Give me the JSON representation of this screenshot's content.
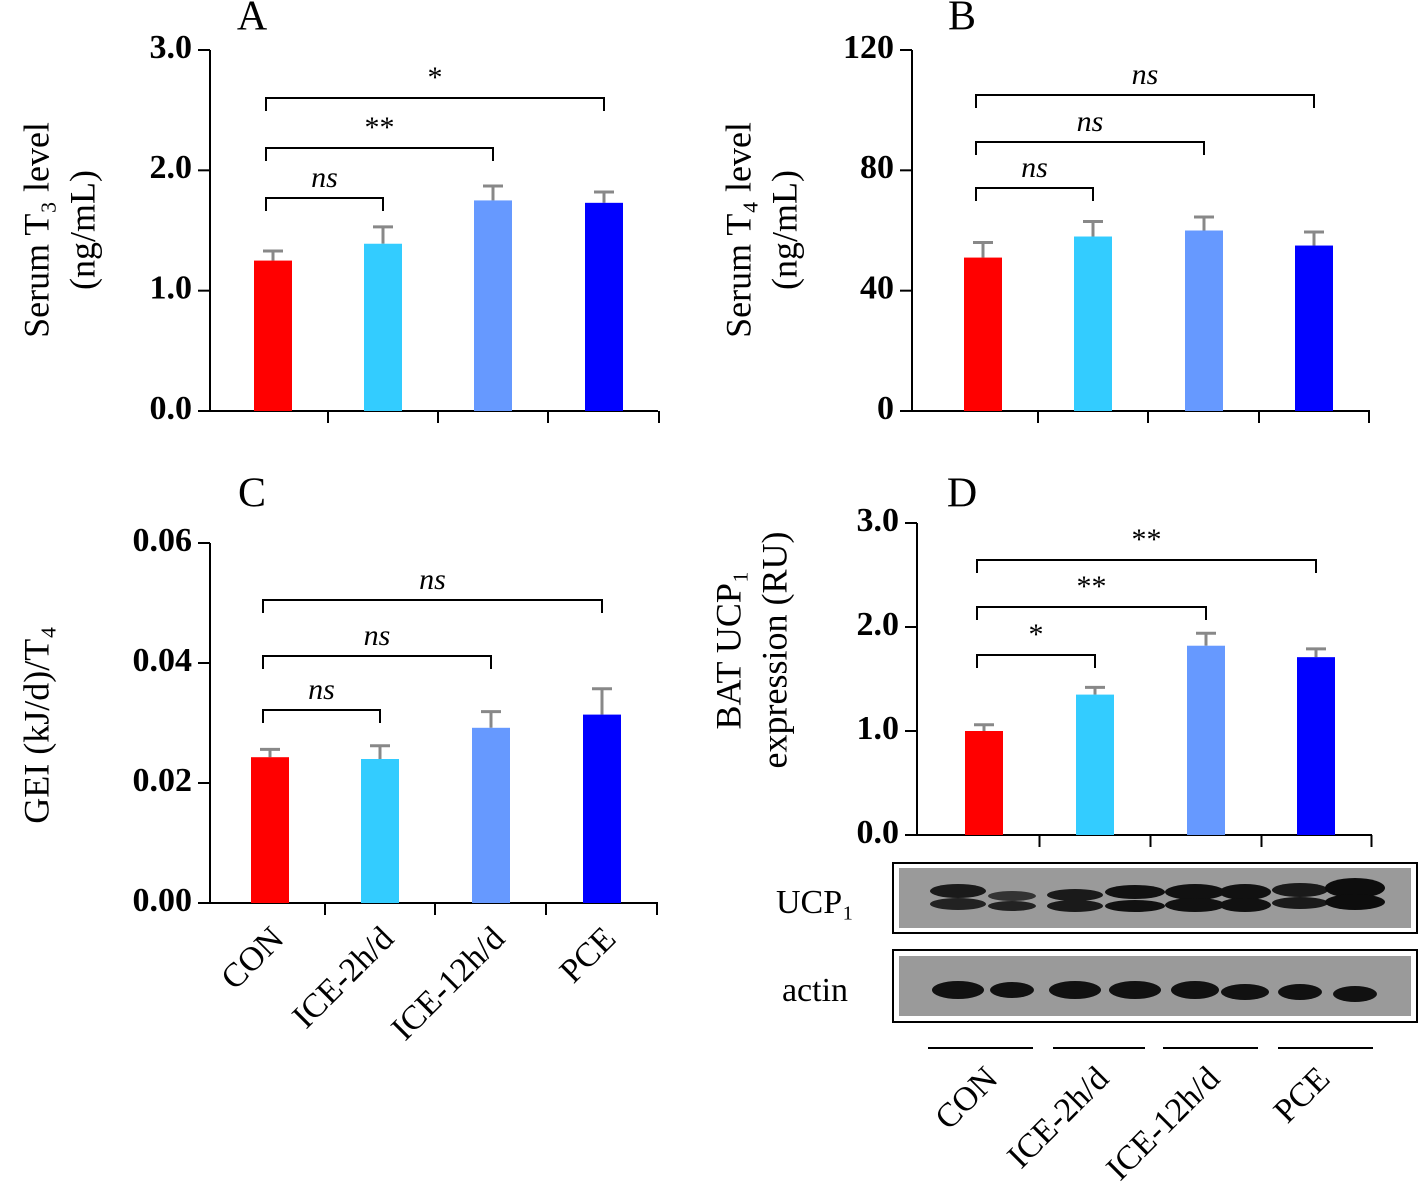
{
  "chart_data": [
    {
      "type": "bar",
      "panel": "A",
      "ylabel": [
        "Serum T₃ level",
        "(ng/mL)"
      ],
      "categories": [
        null,
        null,
        null,
        null
      ],
      "values": [
        1.25,
        1.39,
        1.75,
        1.73
      ],
      "errors": [
        0.08,
        0.14,
        0.12,
        0.09
      ],
      "colors": [
        "#ff0000",
        "#33ccff",
        "#6699ff",
        "#0000ff"
      ],
      "ylim": [
        0,
        3
      ],
      "yticks": [
        {
          "value": 0,
          "label": "0.0"
        },
        {
          "value": 1,
          "label": "1.0"
        },
        {
          "value": 2,
          "label": "2.0"
        },
        {
          "value": 3,
          "label": "3.0"
        }
      ],
      "significance": [
        "ns",
        "**",
        "*"
      ]
    },
    {
      "type": "bar",
      "panel": "B",
      "ylabel": [
        "Serum T₄ level",
        "(ng/mL)"
      ],
      "categories": [
        null,
        null,
        null,
        null
      ],
      "values": [
        51,
        58,
        60,
        55
      ],
      "errors": [
        5,
        5,
        4.5,
        4.5
      ],
      "colors": [
        "#ff0000",
        "#33ccff",
        "#6699ff",
        "#0000ff"
      ],
      "ylim": [
        0,
        120
      ],
      "yticks": [
        0,
        40,
        80,
        120
      ],
      "significance": [
        "ns",
        "ns",
        "ns"
      ]
    },
    {
      "type": "bar",
      "panel": "C",
      "ylabel": [
        "GEI (kJ/d)/T₄"
      ],
      "categories": [
        "CON",
        "ICE-2h/d",
        "ICE-12h/d",
        "PCE"
      ],
      "values": [
        0.0243,
        0.024,
        0.0292,
        0.0314
      ],
      "errors": [
        0.0013,
        0.0022,
        0.0027,
        0.0043
      ],
      "colors": [
        "#ff0000",
        "#33ccff",
        "#6699ff",
        "#0000ff"
      ],
      "ylim": [
        0,
        0.06
      ],
      "yticks": [
        {
          "value": 0,
          "label": "0.00"
        },
        {
          "value": 0.02,
          "label": "0.02"
        },
        {
          "value": 0.04,
          "label": "0.04"
        },
        {
          "value": 0.06,
          "label": "0.06"
        }
      ],
      "significance": [
        "ns",
        "ns",
        "ns"
      ]
    },
    {
      "type": "bar",
      "panel": "D",
      "ylabel": [
        "BAT UCP₁",
        "expression (RU)"
      ],
      "categories": [
        "CON",
        "ICE-2h/d",
        "ICE-12h/d",
        "PCE"
      ],
      "values": [
        1.0,
        1.35,
        1.82,
        1.71
      ],
      "errors": [
        0.06,
        0.07,
        0.12,
        0.08
      ],
      "colors": [
        "#ff0000",
        "#33ccff",
        "#6699ff",
        "#0000ff"
      ],
      "ylim": [
        0,
        3
      ],
      "yticks": [
        {
          "value": 0,
          "label": "0.0"
        },
        {
          "value": 1,
          "label": "1.0"
        },
        {
          "value": 2,
          "label": "2.0"
        },
        {
          "value": 3,
          "label": "3.0"
        }
      ],
      "significance": [
        "*",
        "**",
        "**"
      ],
      "blot_labels": [
        "UCP₁",
        "actin"
      ]
    }
  ]
}
